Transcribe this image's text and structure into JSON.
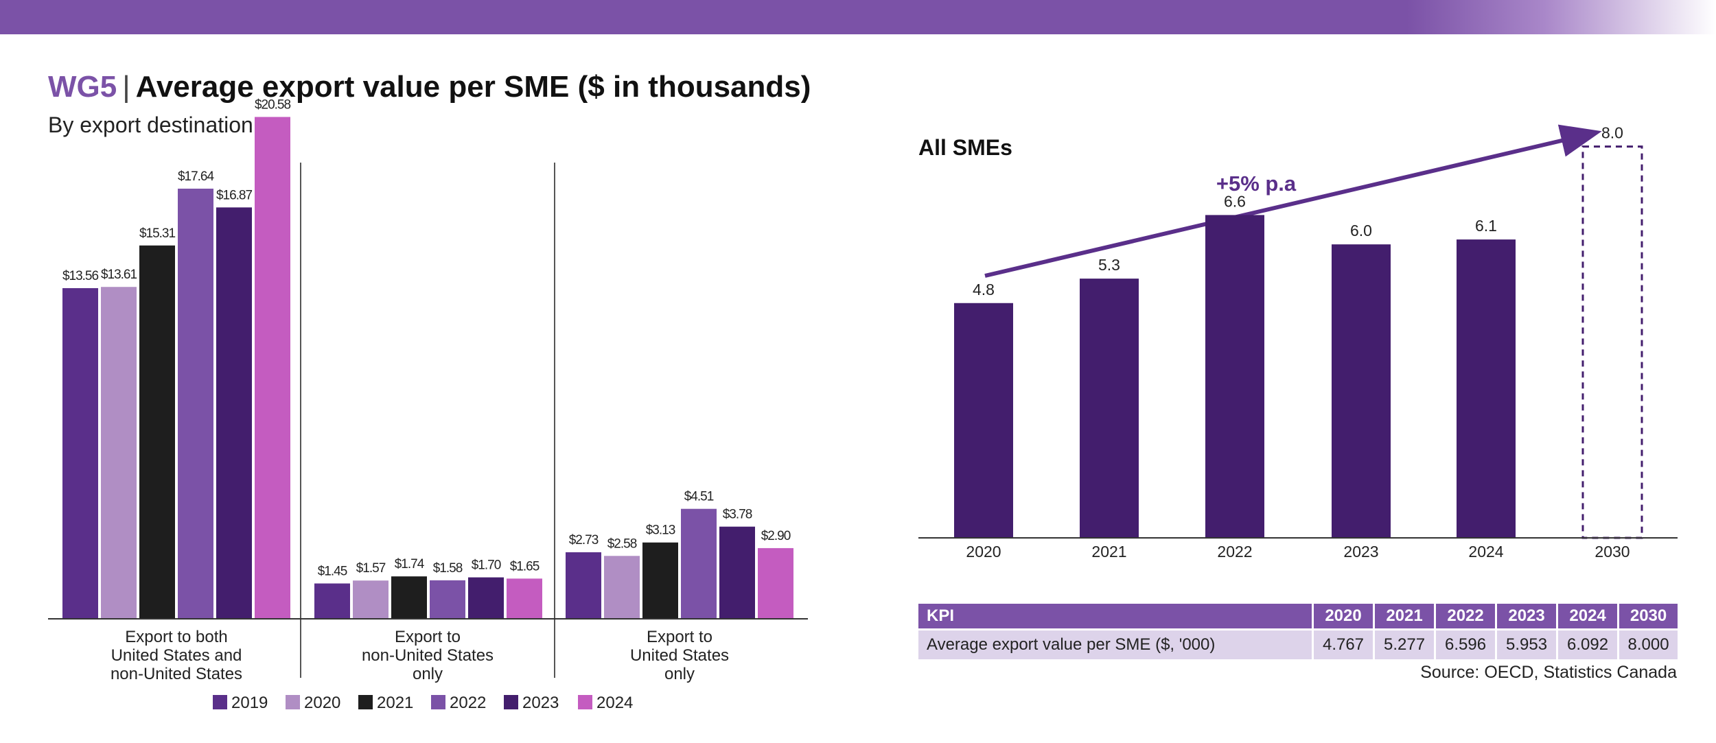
{
  "header": {
    "code": "WG5",
    "separator": "|",
    "title": "Average export value per SME ($ in thousands)",
    "subtitle": "By export destination"
  },
  "colors": {
    "top_bar": "#7b52a7",
    "2019": "#5a2f8a",
    "2020": "#b08ec4",
    "2021": "#1e1e1e",
    "2022": "#7b52a7",
    "2023": "#431e6d",
    "2024": "#c45cc0",
    "all_smes_bar": "#431e6d",
    "arrow": "#5a2f8a"
  },
  "chart_data": [
    {
      "type": "bar",
      "title": "By export destination",
      "categories": [
        [
          "Export to both",
          "United States and",
          "non-United States"
        ],
        [
          "Export to",
          "non-United States",
          "only"
        ],
        [
          "Export to",
          "United States",
          "only"
        ]
      ],
      "series": [
        {
          "name": "2019",
          "values": [
            13.56,
            1.45,
            2.73
          ],
          "labels": [
            "$13.56",
            "$1.45",
            "$2.73"
          ]
        },
        {
          "name": "2020",
          "values": [
            13.61,
            1.57,
            2.58
          ],
          "labels": [
            "$13.61",
            "$1.57",
            "$2.58"
          ]
        },
        {
          "name": "2021",
          "values": [
            15.31,
            1.74,
            3.13
          ],
          "labels": [
            "$15.31",
            "$1.74",
            "$3.13"
          ]
        },
        {
          "name": "2022",
          "values": [
            17.64,
            1.58,
            4.51
          ],
          "labels": [
            "$17.64",
            "$1.58",
            "$4.51"
          ]
        },
        {
          "name": "2023",
          "values": [
            16.87,
            1.7,
            3.78
          ],
          "labels": [
            "$16.87",
            "$1.70",
            "$3.78"
          ]
        },
        {
          "name": "2024",
          "values": [
            20.58,
            1.65,
            2.9
          ],
          "labels": [
            "$20.58",
            "$1.65",
            "$2.90"
          ]
        }
      ],
      "ylim": [
        0,
        22
      ],
      "legend": "bottom"
    },
    {
      "type": "bar",
      "title": "All SMEs",
      "categories": [
        "2020",
        "2021",
        "2022",
        "2023",
        "2024",
        "2030"
      ],
      "values": [
        4.8,
        5.3,
        6.6,
        6.0,
        6.1,
        8.0
      ],
      "labels": [
        "4.8",
        "5.3",
        "6.6",
        "6.0",
        "6.1",
        "8.0"
      ],
      "target_category": "2030",
      "annotation": "+5% p.a",
      "ylim": [
        0,
        9
      ]
    }
  ],
  "kpi_table": {
    "header": [
      "KPI",
      "2020",
      "2021",
      "2022",
      "2023",
      "2024",
      "2030"
    ],
    "row": [
      "Average export value per SME ($, '000)",
      "4.767",
      "5.277",
      "6.596",
      "5.953",
      "6.092",
      "8.000"
    ]
  },
  "source": "Source: OECD, Statistics Canada"
}
